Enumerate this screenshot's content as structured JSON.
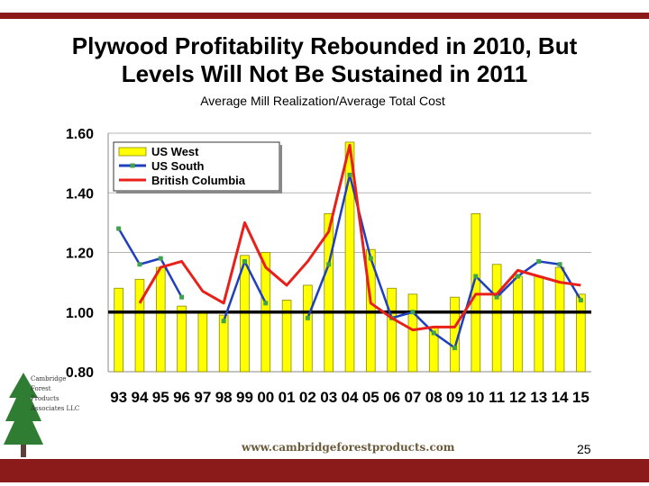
{
  "slide": {
    "title_line1": "Plywood Profitability Rebounded in 2010, But",
    "title_line2": "Levels Will Not Be Sustained in 2011",
    "subtitle": "Average Mill Realization/Average Total Cost",
    "url": "www.cambridgeforestproducts.com",
    "page_number": "25",
    "logo_text": [
      "Cambridge",
      "Forest",
      "Products",
      "Associates LLC"
    ],
    "colors": {
      "accent_bar": "#8b1a1a",
      "bars": "#ffff00",
      "us_south": "#1f3fbf",
      "british_columbia": "#e8201a"
    }
  },
  "chart_data": {
    "type": "bar",
    "categories": [
      "93",
      "94",
      "95",
      "96",
      "97",
      "98",
      "99",
      "00",
      "01",
      "02",
      "03",
      "04",
      "05",
      "06",
      "07",
      "08",
      "09",
      "10",
      "11",
      "12",
      "13",
      "14",
      "15"
    ],
    "ylim": [
      0.8,
      1.6
    ],
    "yticks": [
      "0.80",
      "1.00",
      "1.20",
      "1.40",
      "1.60"
    ],
    "grid": true,
    "legend_position": "top-left",
    "reference_line": 1.0,
    "series": [
      {
        "name": "US West",
        "kind": "bar",
        "values": [
          1.08,
          1.11,
          1.15,
          1.02,
          1.0,
          0.99,
          1.19,
          1.2,
          1.04,
          1.09,
          1.33,
          1.57,
          1.21,
          1.08,
          1.06,
          0.95,
          1.05,
          1.33,
          1.16,
          1.12,
          1.12,
          1.15,
          1.06
        ]
      },
      {
        "name": "US South",
        "kind": "line",
        "values": [
          1.28,
          1.16,
          1.18,
          1.05,
          null,
          0.97,
          1.17,
          1.03,
          null,
          0.98,
          1.16,
          1.46,
          1.18,
          0.98,
          1.0,
          0.93,
          0.88,
          1.12,
          1.05,
          1.12,
          1.17,
          1.16,
          1.04
        ]
      },
      {
        "name": "British Columbia",
        "kind": "line",
        "values": [
          null,
          1.03,
          1.15,
          1.17,
          1.07,
          1.03,
          1.3,
          1.15,
          1.09,
          1.17,
          1.27,
          1.56,
          1.03,
          0.98,
          0.94,
          0.95,
          0.95,
          1.06,
          1.06,
          1.14,
          1.12,
          1.1,
          1.09
        ]
      }
    ]
  }
}
